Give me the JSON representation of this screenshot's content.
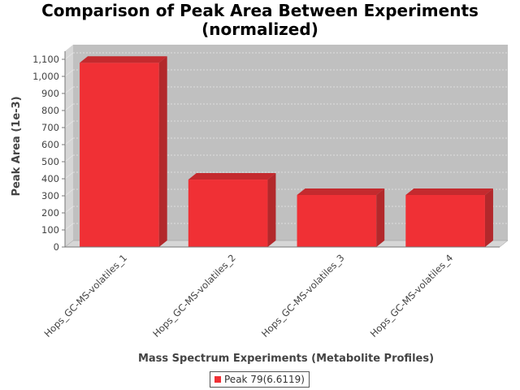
{
  "chart_data": {
    "type": "bar",
    "title": [
      "Comparison of Peak Area Between Experiments",
      "(normalized)"
    ],
    "xlabel": "Mass Spectrum Experiments (Metabolite Profiles)",
    "ylabel": "Peak Area (1e-3)",
    "categories": [
      "Hops_GC-MS-volatiles_1",
      "Hops_GC-MS-volatiles_2",
      "Hops_GC-MS-volatiles_3",
      "Hops_GC-MS-volatiles_4"
    ],
    "series": [
      {
        "name": "Peak 79(6.6119)",
        "values": [
          1080,
          395,
          305,
          305
        ]
      }
    ],
    "ylim": [
      0,
      1100
    ],
    "yticks": [
      0,
      100,
      200,
      300,
      400,
      500,
      600,
      700,
      800,
      900,
      1000,
      1100
    ],
    "ytick_labels": [
      "0",
      "100",
      "200",
      "300",
      "400",
      "500",
      "600",
      "700",
      "800",
      "900",
      "1,000",
      "1,100"
    ],
    "grid": true,
    "legend_position": "bottom",
    "style": "3d",
    "colors": {
      "bar_front": "#f03035",
      "bar_top": "#c42a2e",
      "bar_side": "#b3282b",
      "plot_background": "#c0c0c0",
      "wall": "#d6d6d6",
      "gridline": "#e8e8e8"
    }
  }
}
